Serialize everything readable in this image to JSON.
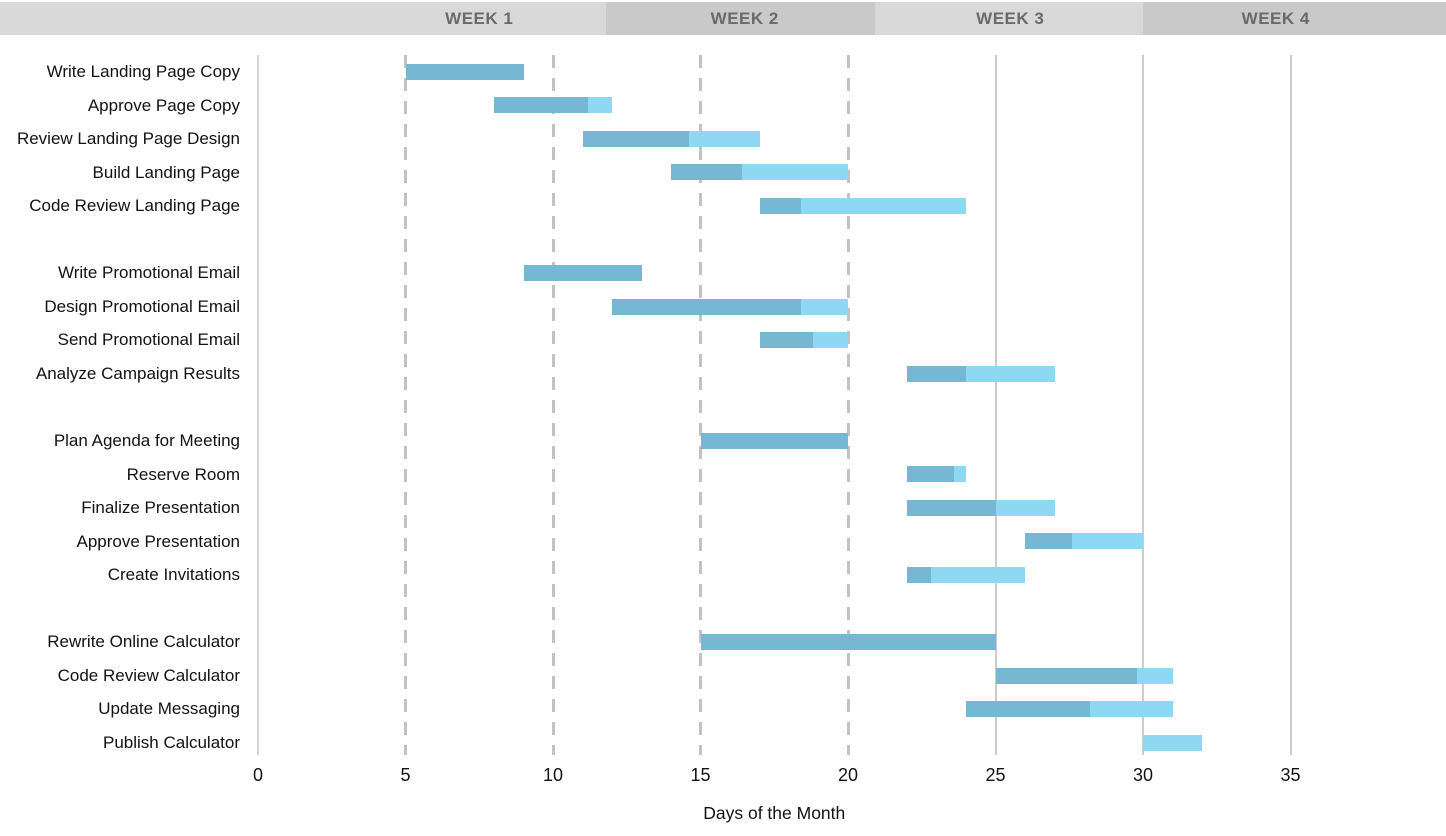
{
  "header": {
    "weeks": [
      {
        "label": "WEEK 1",
        "center_day": 7.5,
        "shade": "light"
      },
      {
        "label": "WEEK 2",
        "center_day": 16.5,
        "shade": "dark"
      },
      {
        "label": "WEEK 3",
        "center_day": 25.5,
        "shade": "light"
      },
      {
        "label": "WEEK 4",
        "center_day": 34.5,
        "shade": "dark"
      }
    ],
    "band_light_color": "#d9d9d9",
    "band_dark_color": "#c9c9c9",
    "label_color": "#6a6a6a",
    "dark_segments_days": [
      [
        11.8,
        20.9
      ],
      [
        30.0,
        40.3
      ]
    ]
  },
  "chart_data": {
    "type": "bar",
    "subtype": "gantt",
    "title": "",
    "xlabel": "Days of the Month",
    "ylabel": "",
    "xlim": [
      0,
      35
    ],
    "x_ticks": [
      0,
      5,
      10,
      15,
      20,
      25,
      30,
      35
    ],
    "legend": "none",
    "bar_color_complete": "#76b7d3",
    "bar_color_remaining": "#8ed8f3",
    "gridlines": {
      "axis_day": 0,
      "dashed_days": [
        5,
        10,
        15,
        20
      ],
      "solid_days": [
        25,
        30,
        35
      ]
    },
    "groups": [
      {
        "tasks": [
          {
            "name": "Write Landing Page Copy",
            "start": 5,
            "end": 9,
            "progress": 1.0
          },
          {
            "name": "Approve Page Copy",
            "start": 8,
            "end": 12,
            "progress": 0.8
          },
          {
            "name": "Review Landing Page Design",
            "start": 11,
            "end": 17,
            "progress": 0.6
          },
          {
            "name": "Build Landing Page",
            "start": 14,
            "end": 20,
            "progress": 0.4
          },
          {
            "name": "Code Review Landing Page",
            "start": 17,
            "end": 24,
            "progress": 0.2
          }
        ]
      },
      {
        "tasks": [
          {
            "name": "Write Promotional Email",
            "start": 9,
            "end": 13,
            "progress": 1.0
          },
          {
            "name": "Design Promotional Email",
            "start": 12,
            "end": 20,
            "progress": 0.8
          },
          {
            "name": "Send Promotional Email",
            "start": 17,
            "end": 20,
            "progress": 0.6
          },
          {
            "name": "Analyze Campaign Results",
            "start": 22,
            "end": 27,
            "progress": 0.4
          }
        ]
      },
      {
        "tasks": [
          {
            "name": "Plan Agenda for Meeting",
            "start": 15,
            "end": 20,
            "progress": 1.0
          },
          {
            "name": "Reserve Room",
            "start": 22,
            "end": 24,
            "progress": 0.8
          },
          {
            "name": "Finalize Presentation",
            "start": 22,
            "end": 27,
            "progress": 0.6
          },
          {
            "name": "Approve Presentation",
            "start": 26,
            "end": 30,
            "progress": 0.4
          },
          {
            "name": "Create Invitations",
            "start": 22,
            "end": 26,
            "progress": 0.2
          }
        ]
      },
      {
        "tasks": [
          {
            "name": "Rewrite Online Calculator",
            "start": 15,
            "end": 25,
            "progress": 1.0
          },
          {
            "name": "Code Review Calculator",
            "start": 25,
            "end": 31,
            "progress": 0.8
          },
          {
            "name": "Update Messaging",
            "start": 24,
            "end": 31,
            "progress": 0.6
          },
          {
            "name": "Publish Calculator",
            "start": 30,
            "end": 32,
            "progress": 0.0
          }
        ]
      }
    ]
  },
  "axis": {
    "tick_labels": [
      "0",
      "5",
      "10",
      "15",
      "20",
      "25",
      "30",
      "35"
    ],
    "title": "Days of the Month"
  }
}
